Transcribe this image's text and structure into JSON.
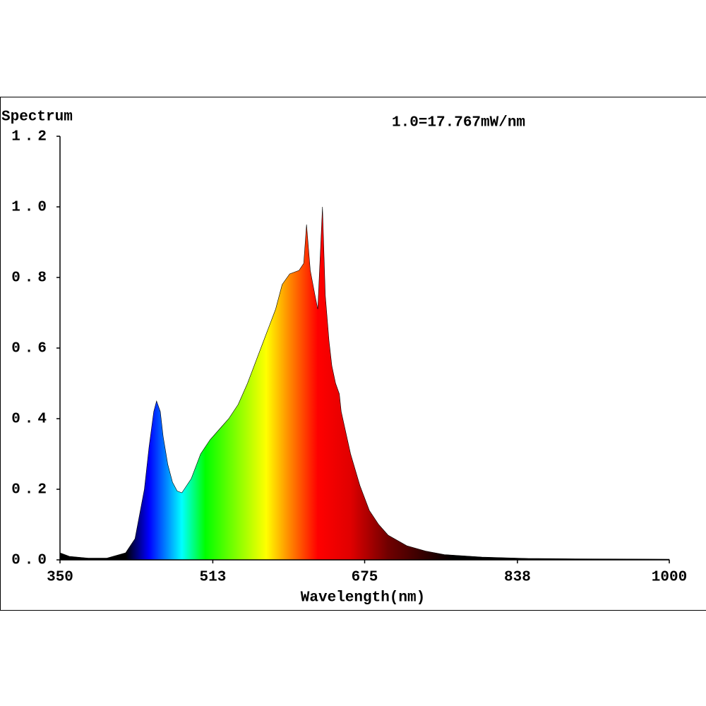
{
  "chart_data": {
    "type": "area",
    "title": "Spectrum",
    "annotation": "1.0=17.767mW/nm",
    "x_label": "Wavelength(nm)",
    "x": [
      350,
      360,
      380,
      400,
      420,
      430,
      440,
      445,
      450,
      453,
      457,
      460,
      465,
      470,
      475,
      480,
      490,
      500,
      510,
      520,
      530,
      540,
      550,
      560,
      570,
      580,
      587,
      595,
      605,
      610,
      613,
      617,
      622,
      625,
      630,
      633,
      637,
      640,
      644,
      648,
      650,
      660,
      670,
      680,
      690,
      700,
      720,
      740,
      760,
      800,
      850,
      900,
      1000
    ],
    "values": [
      0.02,
      0.01,
      0.005,
      0.005,
      0.02,
      0.06,
      0.2,
      0.32,
      0.42,
      0.45,
      0.42,
      0.35,
      0.27,
      0.22,
      0.195,
      0.19,
      0.23,
      0.3,
      0.34,
      0.37,
      0.4,
      0.44,
      0.5,
      0.57,
      0.64,
      0.71,
      0.78,
      0.81,
      0.82,
      0.84,
      0.95,
      0.82,
      0.75,
      0.71,
      1.0,
      0.75,
      0.62,
      0.55,
      0.5,
      0.47,
      0.42,
      0.3,
      0.21,
      0.14,
      0.1,
      0.07,
      0.04,
      0.025,
      0.015,
      0.008,
      0.004,
      0.003,
      0.002
    ],
    "xlim": [
      350,
      1000
    ],
    "ylim": [
      0,
      1.2
    ],
    "xticks": [
      350,
      513,
      675,
      838,
      1000
    ],
    "yticks": [
      {
        "value": 0,
        "label": "0.0"
      },
      0.2,
      0.4,
      0.6,
      0.8,
      {
        "value": 1,
        "label": "1.0"
      },
      1.2
    ],
    "color_stops": [
      {
        "value": 420,
        "color": "#000000"
      },
      {
        "value": 445,
        "color": "#0000ff"
      },
      {
        "value": 480,
        "color": "#00ffff"
      },
      {
        "value": 505,
        "color": "#00ff00"
      },
      {
        "value": 570,
        "color": "#ffff00"
      },
      {
        "value": 595,
        "color": "#ff8800"
      },
      {
        "value": 625,
        "color": "#ff0000"
      },
      {
        "value": 660,
        "color": "#e00000"
      },
      {
        "value": 700,
        "color": "#700000"
      },
      {
        "value": 770,
        "color": "#000000"
      }
    ]
  }
}
